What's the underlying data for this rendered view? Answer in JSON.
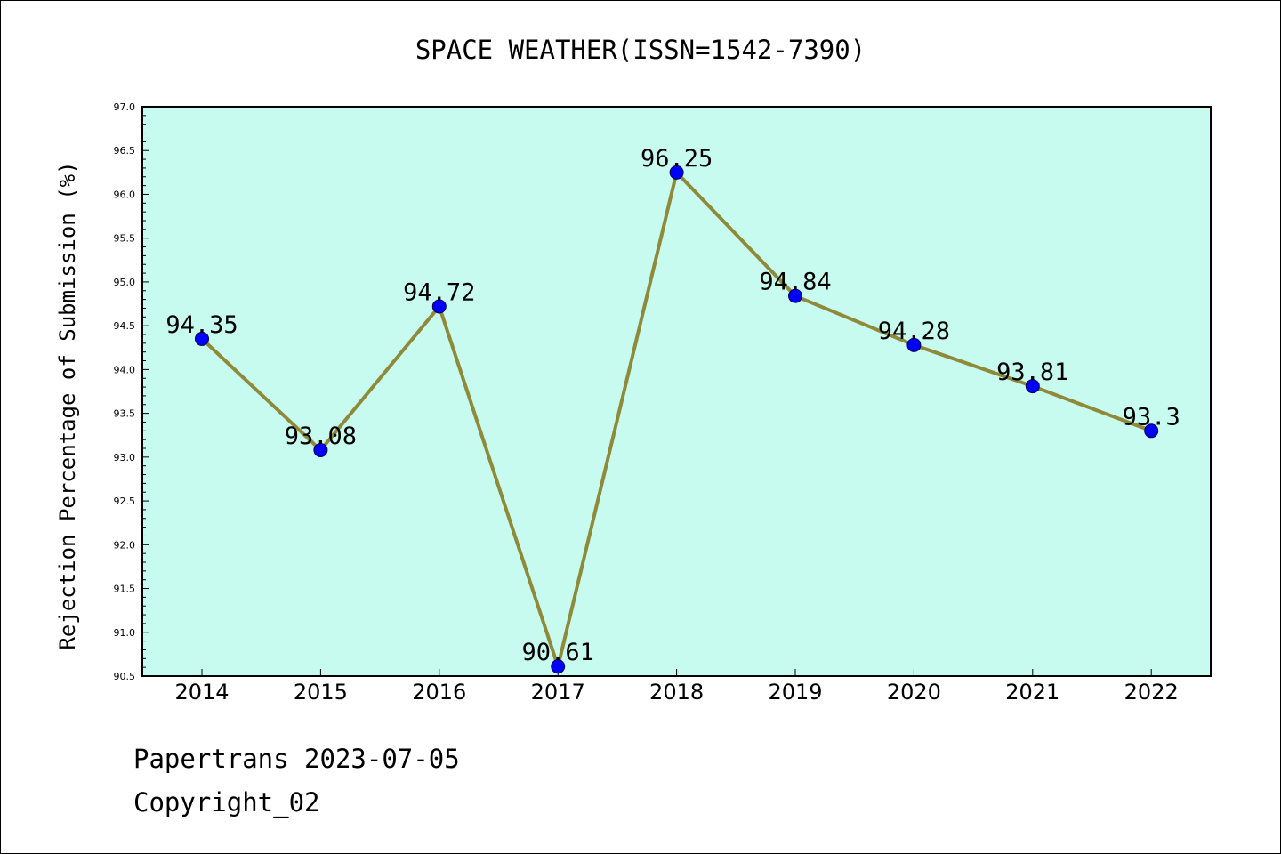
{
  "chart_data": {
    "type": "line",
    "title": "SPACE WEATHER(ISSN=1542-7390)",
    "xlabel": "",
    "ylabel": "Rejection Percentage of Submission (%)",
    "categories": [
      "2014",
      "2015",
      "2016",
      "2017",
      "2018",
      "2019",
      "2020",
      "2021",
      "2022"
    ],
    "series": [
      {
        "values": [
          94.35,
          93.08,
          94.72,
          90.61,
          96.25,
          94.84,
          94.28,
          93.81,
          93.3
        ],
        "labels": [
          "94.35",
          "93.08",
          "94.72",
          "90.61",
          "96.25",
          "94.84",
          "94.28",
          "93.81",
          "93.3"
        ]
      }
    ],
    "ylim": [
      90.5,
      97.0
    ],
    "yticks": [
      "90.5",
      "91.0",
      "91.5",
      "92.0",
      "92.5",
      "93.0",
      "93.5",
      "94.0",
      "94.5",
      "95.0",
      "95.5",
      "96.0",
      "96.5",
      "97.0"
    ],
    "grid": false,
    "legend": "none"
  },
  "colors": {
    "plot_background": "#c8fbef",
    "line": "#8f8a3a",
    "marker": "#0000ff",
    "axis": "#000000"
  },
  "footer": {
    "line1": "Papertrans 2023-07-05",
    "line2": "Copyright_02"
  }
}
